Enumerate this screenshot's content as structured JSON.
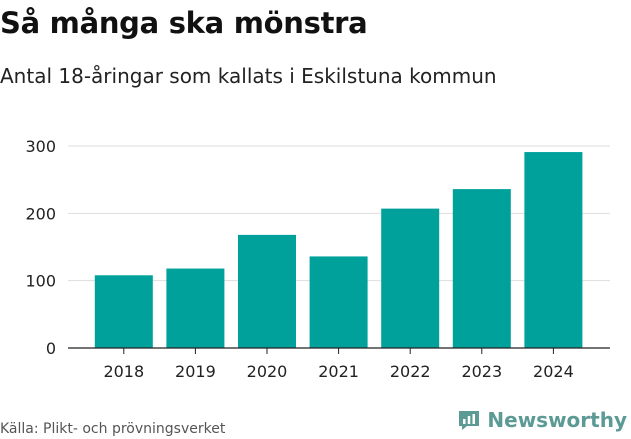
{
  "title": "Så många ska mönstra",
  "subtitle": "Antal 18-åringar som kallats i Eskilstuna kommun",
  "source": "Källa: Plikt- och prövningsverket",
  "brand": {
    "name": "Newsworthy",
    "icon": "bar-chart-logo-icon"
  },
  "colors": {
    "bar": "#00a19a",
    "grid": "#dddddd",
    "axis": "#222222"
  },
  "chart_data": {
    "type": "bar",
    "title": "Så många ska mönstra",
    "subtitle": "Antal 18-åringar som kallats i Eskilstuna kommun",
    "categories": [
      "2018",
      "2019",
      "2020",
      "2021",
      "2022",
      "2023",
      "2024"
    ],
    "values": [
      108,
      118,
      168,
      136,
      207,
      236,
      291
    ],
    "yticks": [
      0,
      100,
      200,
      300
    ],
    "ylim": [
      0,
      300
    ],
    "xlabel": "",
    "ylabel": "",
    "grid": true
  }
}
